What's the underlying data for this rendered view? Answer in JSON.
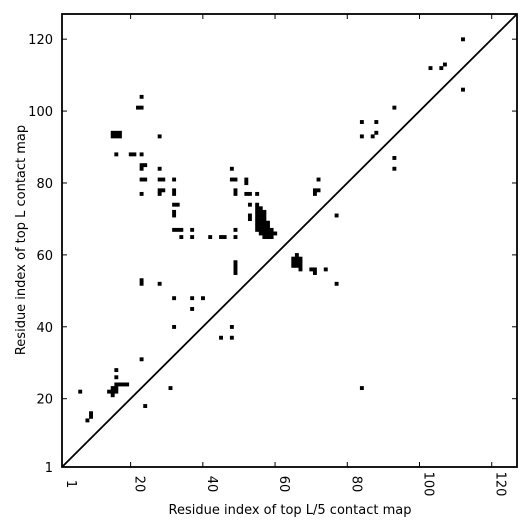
{
  "chart_data": {
    "type": "scatter",
    "xlabel": "Residue index of top L/5 contact map",
    "ylabel": "Residue index of top L contact map",
    "xlim": [
      1,
      127
    ],
    "ylim": [
      1,
      127
    ],
    "x_ticks": [
      1,
      20,
      40,
      60,
      80,
      100,
      120
    ],
    "y_ticks": [
      1,
      20,
      40,
      60,
      80,
      100,
      120
    ],
    "diagonal": true,
    "marker_color": "#000000",
    "upper_triangle": [
      [
        112,
        120
      ],
      [
        103,
        112
      ],
      [
        106,
        112
      ],
      [
        107,
        113
      ],
      [
        23,
        104
      ],
      [
        22,
        101
      ],
      [
        23,
        101
      ],
      [
        15,
        94
      ],
      [
        16,
        94
      ],
      [
        17,
        94
      ],
      [
        15,
        93
      ],
      [
        16,
        93
      ],
      [
        17,
        93
      ],
      [
        28,
        93
      ],
      [
        16,
        88
      ],
      [
        20,
        88
      ],
      [
        21,
        88
      ],
      [
        23,
        88
      ],
      [
        23,
        85
      ],
      [
        24,
        85
      ],
      [
        23,
        84
      ],
      [
        28,
        84
      ],
      [
        23,
        81
      ],
      [
        24,
        81
      ],
      [
        28,
        81
      ],
      [
        29,
        81
      ],
      [
        32,
        81
      ],
      [
        28,
        78
      ],
      [
        29,
        78
      ],
      [
        32,
        78
      ],
      [
        28,
        77
      ],
      [
        23,
        77
      ],
      [
        32,
        77
      ],
      [
        32,
        74
      ],
      [
        33,
        74
      ],
      [
        32,
        72
      ],
      [
        32,
        71
      ],
      [
        32,
        67
      ],
      [
        33,
        67
      ],
      [
        34,
        67
      ],
      [
        37,
        67
      ],
      [
        34,
        65
      ],
      [
        37,
        65
      ],
      [
        23,
        53
      ],
      [
        23,
        52
      ],
      [
        28,
        52
      ],
      [
        32,
        48
      ],
      [
        37,
        48
      ],
      [
        40,
        48
      ],
      [
        37,
        45
      ],
      [
        32,
        40
      ],
      [
        23,
        31
      ],
      [
        31,
        23
      ],
      [
        16,
        28
      ],
      [
        16,
        26
      ],
      [
        16,
        24
      ],
      [
        17,
        24
      ],
      [
        18,
        24
      ],
      [
        19,
        24
      ],
      [
        14,
        22
      ],
      [
        15,
        22
      ],
      [
        16,
        22
      ],
      [
        15,
        23
      ],
      [
        16,
        23
      ],
      [
        15,
        21
      ],
      [
        6,
        22
      ],
      [
        9,
        16
      ],
      [
        9,
        15
      ],
      [
        8,
        14
      ],
      [
        24,
        18
      ],
      [
        48,
        84
      ],
      [
        48,
        81
      ],
      [
        49,
        81
      ],
      [
        49,
        78
      ],
      [
        49,
        77
      ],
      [
        52,
        81
      ],
      [
        52,
        80
      ],
      [
        52,
        77
      ],
      [
        53,
        77
      ],
      [
        55,
        77
      ],
      [
        53,
        74
      ],
      [
        55,
        74
      ],
      [
        53,
        71
      ],
      [
        53,
        70
      ],
      [
        49,
        67
      ],
      [
        49,
        65
      ],
      [
        42,
        65
      ],
      [
        45,
        65
      ],
      [
        46,
        65
      ],
      [
        49,
        58
      ],
      [
        49,
        57
      ],
      [
        49,
        56
      ],
      [
        49,
        55
      ],
      [
        48,
        40
      ],
      [
        48,
        37
      ],
      [
        45,
        37
      ]
    ],
    "contact_block": [
      [
        55,
        73
      ],
      [
        56,
        73
      ],
      [
        55,
        72
      ],
      [
        56,
        72
      ],
      [
        57,
        72
      ],
      [
        55,
        71
      ],
      [
        56,
        71
      ],
      [
        57,
        71
      ],
      [
        55,
        70
      ],
      [
        56,
        70
      ],
      [
        57,
        70
      ],
      [
        55,
        69
      ],
      [
        56,
        69
      ],
      [
        57,
        69
      ],
      [
        58,
        69
      ],
      [
        55,
        68
      ],
      [
        56,
        68
      ],
      [
        57,
        68
      ],
      [
        58,
        68
      ],
      [
        55,
        67
      ],
      [
        56,
        67
      ],
      [
        57,
        67
      ],
      [
        58,
        67
      ],
      [
        59,
        67
      ],
      [
        56,
        66
      ],
      [
        57,
        66
      ],
      [
        58,
        66
      ],
      [
        59,
        66
      ],
      [
        60,
        66
      ],
      [
        57,
        65
      ],
      [
        58,
        65
      ],
      [
        59,
        65
      ]
    ],
    "lower_triangle": [
      [
        66,
        60
      ],
      [
        65,
        59
      ],
      [
        66,
        59
      ],
      [
        67,
        59
      ],
      [
        65,
        58
      ],
      [
        66,
        58
      ],
      [
        67,
        58
      ],
      [
        65,
        57
      ],
      [
        66,
        57
      ],
      [
        67,
        57
      ],
      [
        67,
        56
      ],
      [
        70,
        56
      ],
      [
        71,
        56
      ],
      [
        71,
        55
      ],
      [
        74,
        56
      ],
      [
        72,
        81
      ],
      [
        71,
        78
      ],
      [
        72,
        78
      ],
      [
        71,
        77
      ],
      [
        77,
        71
      ],
      [
        77,
        52
      ],
      [
        84,
        97
      ],
      [
        88,
        97
      ],
      [
        84,
        93
      ],
      [
        87,
        93
      ],
      [
        88,
        94
      ],
      [
        93,
        101
      ],
      [
        93,
        87
      ],
      [
        93,
        84
      ],
      [
        112,
        106
      ],
      [
        84,
        23
      ]
    ]
  }
}
